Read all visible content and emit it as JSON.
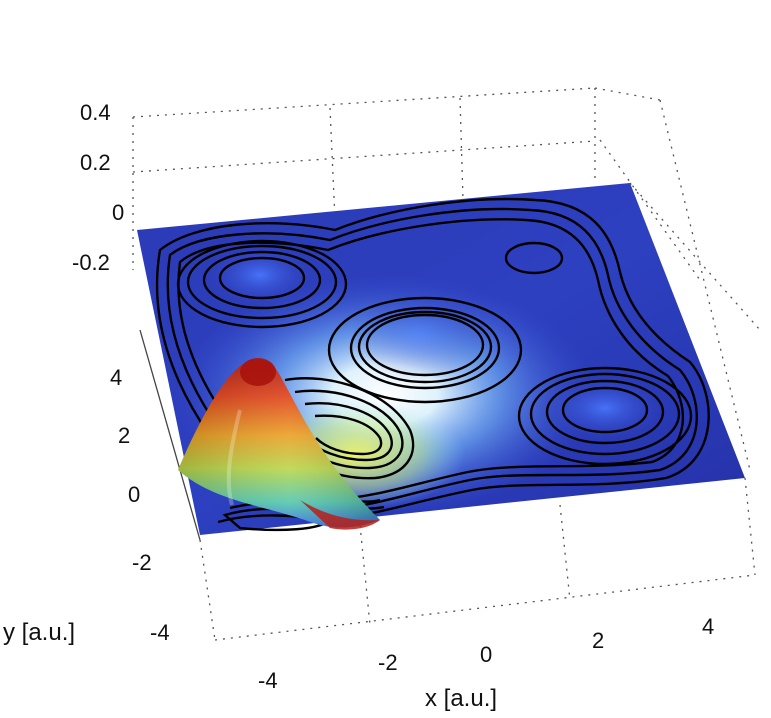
{
  "chart_data": {
    "type": "surface",
    "xlabel": "x [a.u.]",
    "ylabel": "y [a.u.]",
    "zlabel": "",
    "x_ticks": [
      -4,
      -2,
      0,
      2,
      4
    ],
    "y_ticks": [
      -4,
      -2,
      0,
      2,
      4
    ],
    "z_ticks": [
      0.4,
      0.2,
      0,
      -0.2
    ],
    "xlim": [
      -5,
      5
    ],
    "ylim": [
      -5,
      5
    ],
    "zlim": [
      -0.3,
      0.4
    ],
    "grid": true,
    "colormap": [
      "#1a22a8",
      "#2f55e0",
      "#c8f3ff",
      "#f0f040",
      "#e08020",
      "#b01010"
    ],
    "surface_color": "#2a35b0",
    "contour_color": "#000000",
    "features": [
      {
        "kind": "peak",
        "x": -3.6,
        "y": 1.8,
        "z": 0.35
      },
      {
        "kind": "contour-center",
        "x": -3.6,
        "y": 3.6
      },
      {
        "kind": "contour-center",
        "x": -0.8,
        "y": 2.6
      },
      {
        "kind": "contour-center",
        "x": 0.6,
        "y": 4.0
      },
      {
        "kind": "contour-center",
        "x": 2.8,
        "y": 1.6
      }
    ]
  },
  "axis_text": {
    "xlabel": "x [a.u.]",
    "ylabel": "y [a.u.]",
    "x_ticks": [
      "-4",
      "-2",
      "0",
      "2",
      "4"
    ],
    "y_ticks": [
      "4",
      "2",
      "0",
      "-2",
      "-4"
    ],
    "z_ticks": [
      "0.4",
      "0.2",
      "0",
      "-0.2"
    ]
  }
}
